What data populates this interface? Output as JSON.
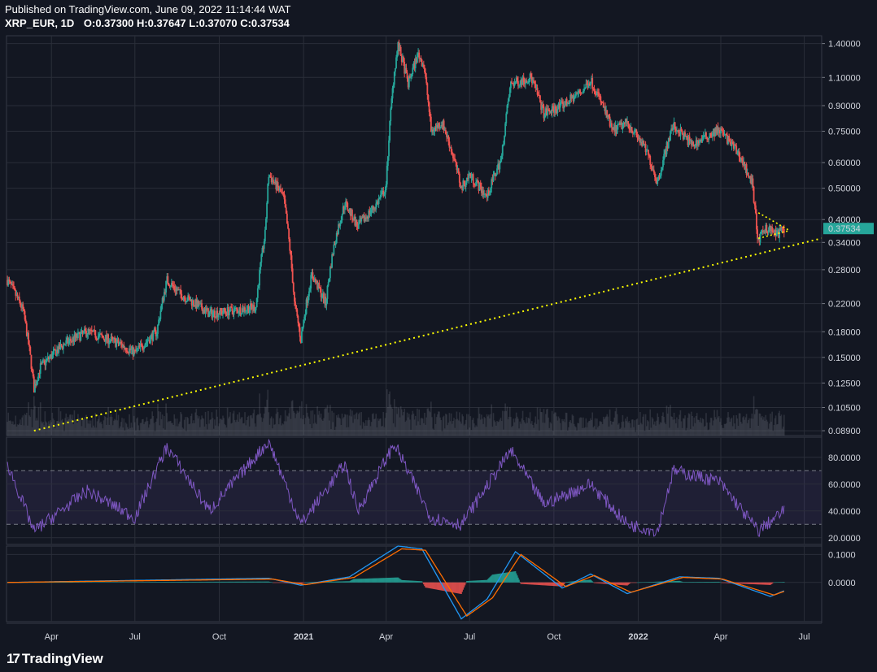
{
  "header": {
    "published": "Published on TradingView.com, June 09, 2022 11:14:44 WAT",
    "symbol": "XRP_EUR, 1D",
    "o_label": "O:",
    "o": "0.37300",
    "h_label": "H:",
    "h": "0.37647",
    "l_label": "L:",
    "l": "0.37070",
    "c_label": "C:",
    "c": "0.37534"
  },
  "footer": {
    "brand": "TradingView",
    "brand_mark": "17"
  },
  "colors": {
    "background": "#131722",
    "grid": "#2a2e39",
    "up": "#26a69a",
    "down": "#ef5350",
    "trendline": "#ffff00",
    "rsi": "#7e57c2",
    "macd": "#2196f3",
    "signal": "#ff6d00",
    "price_badge": "#26a69a"
  },
  "chart_data": [
    {
      "type": "candlestick",
      "panel": "price",
      "scale": "log",
      "ylim": [
        0.086,
        1.48
      ],
      "price_ticks": [
        "1.40000",
        "1.10000",
        "0.90000",
        "0.75000",
        "0.60000",
        "0.50000",
        "0.40000",
        "0.34000",
        "0.28000",
        "0.22000",
        "0.18000",
        "0.15000",
        "0.12500",
        "0.10500",
        "0.08900"
      ],
      "last_price": "0.37534",
      "x_ticks": [
        "Apr",
        "Jul",
        "Oct",
        "2021",
        "Apr",
        "Jul",
        "Oct",
        "2022",
        "Apr",
        "Jul"
      ],
      "x_range": [
        "2020-02-12",
        "2022-07-20"
      ],
      "approx_close_path": [
        {
          "date": "2020-02-13",
          "close": 0.26
        },
        {
          "date": "2020-03-01",
          "close": 0.21
        },
        {
          "date": "2020-03-13",
          "close": 0.12
        },
        {
          "date": "2020-03-20",
          "close": 0.14
        },
        {
          "date": "2020-04-15",
          "close": 0.165
        },
        {
          "date": "2020-05-10",
          "close": 0.18
        },
        {
          "date": "2020-06-15",
          "close": 0.165
        },
        {
          "date": "2020-07-01",
          "close": 0.155
        },
        {
          "date": "2020-07-25",
          "close": 0.18
        },
        {
          "date": "2020-08-05",
          "close": 0.26
        },
        {
          "date": "2020-08-20",
          "close": 0.235
        },
        {
          "date": "2020-09-20",
          "close": 0.205
        },
        {
          "date": "2020-10-20",
          "close": 0.21
        },
        {
          "date": "2020-11-10",
          "close": 0.215
        },
        {
          "date": "2020-11-20",
          "close": 0.36
        },
        {
          "date": "2020-11-24",
          "close": 0.55
        },
        {
          "date": "2020-12-10",
          "close": 0.47
        },
        {
          "date": "2020-12-22",
          "close": 0.22
        },
        {
          "date": "2020-12-29",
          "close": 0.17
        },
        {
          "date": "2021-01-10",
          "close": 0.27
        },
        {
          "date": "2021-01-25",
          "close": 0.22
        },
        {
          "date": "2021-02-03",
          "close": 0.33
        },
        {
          "date": "2021-02-15",
          "close": 0.45
        },
        {
          "date": "2021-03-01",
          "close": 0.38
        },
        {
          "date": "2021-03-20",
          "close": 0.44
        },
        {
          "date": "2021-04-01",
          "close": 0.5
        },
        {
          "date": "2021-04-10",
          "close": 1.15
        },
        {
          "date": "2021-04-14",
          "close": 1.38
        },
        {
          "date": "2021-04-25",
          "close": 1.05
        },
        {
          "date": "2021-05-06",
          "close": 1.3
        },
        {
          "date": "2021-05-12",
          "close": 1.2
        },
        {
          "date": "2021-05-20",
          "close": 0.75
        },
        {
          "date": "2021-06-01",
          "close": 0.8
        },
        {
          "date": "2021-06-22",
          "close": 0.5
        },
        {
          "date": "2021-07-01",
          "close": 0.55
        },
        {
          "date": "2021-07-20",
          "close": 0.47
        },
        {
          "date": "2021-08-05",
          "close": 0.62
        },
        {
          "date": "2021-08-15",
          "close": 1.05
        },
        {
          "date": "2021-09-06",
          "close": 1.1
        },
        {
          "date": "2021-09-20",
          "close": 0.85
        },
        {
          "date": "2021-10-10",
          "close": 0.9
        },
        {
          "date": "2021-11-01",
          "close": 1.0
        },
        {
          "date": "2021-11-10",
          "close": 1.08
        },
        {
          "date": "2021-12-04",
          "close": 0.75
        },
        {
          "date": "2021-12-20",
          "close": 0.8
        },
        {
          "date": "2022-01-10",
          "close": 0.65
        },
        {
          "date": "2022-01-22",
          "close": 0.52
        },
        {
          "date": "2022-02-08",
          "close": 0.78
        },
        {
          "date": "2022-03-01",
          "close": 0.68
        },
        {
          "date": "2022-03-30",
          "close": 0.76
        },
        {
          "date": "2022-04-20",
          "close": 0.64
        },
        {
          "date": "2022-05-05",
          "close": 0.52
        },
        {
          "date": "2022-05-10",
          "close": 0.38
        },
        {
          "date": "2022-05-12",
          "close": 0.34
        },
        {
          "date": "2022-05-20",
          "close": 0.38
        },
        {
          "date": "2022-06-01",
          "close": 0.36
        },
        {
          "date": "2022-06-09",
          "close": 0.375
        }
      ],
      "trendline": {
        "from": {
          "date": "2020-03-13",
          "price": 0.089
        },
        "to": {
          "date": "2022-07-20",
          "price": 0.35
        }
      },
      "triangle": {
        "top": {
          "date": "2022-05-12",
          "price": 0.42
        },
        "bottom": {
          "date": "2022-05-12",
          "price": 0.35
        },
        "apex": {
          "date": "2022-06-15",
          "price": 0.37
        }
      }
    },
    {
      "type": "line",
      "panel": "RSI",
      "ylim": [
        15,
        95
      ],
      "ticks": [
        "80.0000",
        "60.0000",
        "40.0000",
        "20.0000"
      ],
      "bands": [
        70,
        30
      ],
      "series_color": "#7e57c2",
      "approx_path": [
        {
          "date": "2020-02-13",
          "value": 75
        },
        {
          "date": "2020-03-13",
          "value": 25
        },
        {
          "date": "2020-05-10",
          "value": 55
        },
        {
          "date": "2020-07-01",
          "value": 35
        },
        {
          "date": "2020-08-05",
          "value": 88
        },
        {
          "date": "2020-09-20",
          "value": 40
        },
        {
          "date": "2020-11-24",
          "value": 92
        },
        {
          "date": "2020-12-29",
          "value": 30
        },
        {
          "date": "2021-02-15",
          "value": 75
        },
        {
          "date": "2021-03-01",
          "value": 40
        },
        {
          "date": "2021-04-10",
          "value": 90
        },
        {
          "date": "2021-05-20",
          "value": 35
        },
        {
          "date": "2021-06-22",
          "value": 30
        },
        {
          "date": "2021-08-15",
          "value": 85
        },
        {
          "date": "2021-09-20",
          "value": 45
        },
        {
          "date": "2021-11-10",
          "value": 60
        },
        {
          "date": "2021-12-20",
          "value": 30
        },
        {
          "date": "2022-01-22",
          "value": 25
        },
        {
          "date": "2022-02-08",
          "value": 70
        },
        {
          "date": "2022-03-30",
          "value": 62
        },
        {
          "date": "2022-05-12",
          "value": 25
        },
        {
          "date": "2022-06-09",
          "value": 40
        }
      ]
    },
    {
      "type": "line",
      "panel": "MACD",
      "ylim": [
        -0.14,
        0.13
      ],
      "ticks": [
        "0.1000",
        "0.0000"
      ],
      "series": [
        {
          "color": "#2196f3",
          "values_approx": [
            {
              "date": "2020-02-13",
              "value": 0.0
            },
            {
              "date": "2020-11-24",
              "value": 0.015
            },
            {
              "date": "2020-12-29",
              "value": -0.01
            },
            {
              "date": "2021-02-20",
              "value": 0.02
            },
            {
              "date": "2021-04-14",
              "value": 0.13
            },
            {
              "date": "2021-05-10",
              "value": 0.12
            },
            {
              "date": "2021-06-22",
              "value": -0.13
            },
            {
              "date": "2021-07-20",
              "value": -0.06
            },
            {
              "date": "2021-08-20",
              "value": 0.11
            },
            {
              "date": "2021-10-10",
              "value": -0.02
            },
            {
              "date": "2021-11-10",
              "value": 0.03
            },
            {
              "date": "2021-12-20",
              "value": -0.04
            },
            {
              "date": "2022-02-15",
              "value": 0.02
            },
            {
              "date": "2022-03-30",
              "value": 0.015
            },
            {
              "date": "2022-05-25",
              "value": -0.05
            },
            {
              "date": "2022-06-09",
              "value": -0.03
            }
          ]
        },
        {
          "color": "#ff6d00",
          "values_approx": [
            {
              "date": "2020-02-13",
              "value": 0.0
            },
            {
              "date": "2020-11-28",
              "value": 0.012
            },
            {
              "date": "2021-01-03",
              "value": -0.008
            },
            {
              "date": "2021-02-25",
              "value": 0.018
            },
            {
              "date": "2021-04-18",
              "value": 0.12
            },
            {
              "date": "2021-05-14",
              "value": 0.115
            },
            {
              "date": "2021-06-28",
              "value": -0.12
            },
            {
              "date": "2021-07-26",
              "value": -0.055
            },
            {
              "date": "2021-08-26",
              "value": 0.1
            },
            {
              "date": "2021-10-14",
              "value": -0.015
            },
            {
              "date": "2021-11-14",
              "value": 0.025
            },
            {
              "date": "2021-12-24",
              "value": -0.035
            },
            {
              "date": "2022-02-19",
              "value": 0.018
            },
            {
              "date": "2022-04-03",
              "value": 0.012
            },
            {
              "date": "2022-05-29",
              "value": -0.045
            },
            {
              "date": "2022-06-09",
              "value": -0.032
            }
          ]
        }
      ]
    }
  ]
}
